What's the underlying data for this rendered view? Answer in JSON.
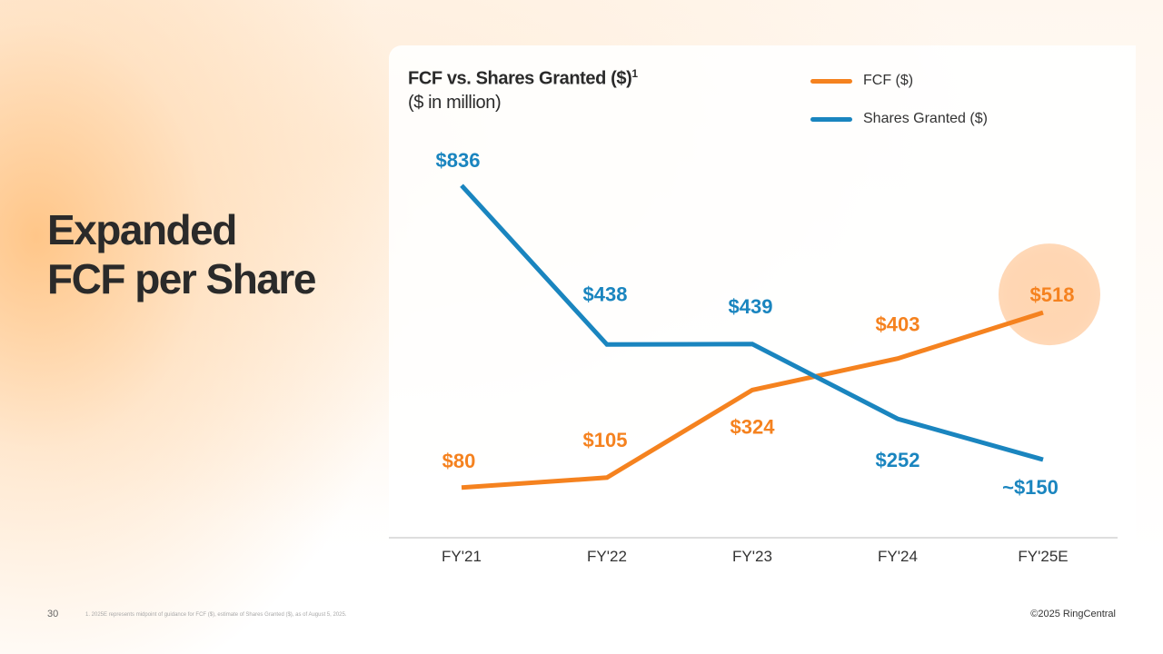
{
  "slide": {
    "headline_line1": "Expanded",
    "headline_line2": "FCF per Share",
    "page_number": "30",
    "footnote": "1.   2025E represents midpoint of guidance for FCF ($), estimate of Shares Granted ($), as of August 5, 2025.",
    "copyright": "©2025 RingCentral"
  },
  "chart_data": {
    "type": "line",
    "title": "FCF vs. Shares Granted ($)",
    "title_superscript": "1",
    "subtitle": "($ in million)",
    "categories": [
      "FY'21",
      "FY'22",
      "FY'23",
      "FY'24",
      "FY'25E"
    ],
    "series": [
      {
        "name": "FCF ($)",
        "color": "#f5821f",
        "values": [
          80,
          105,
          324,
          403,
          518
        ],
        "labels": [
          "$80",
          "$105",
          "$324",
          "$403",
          "$518"
        ]
      },
      {
        "name": "Shares Granted ($)",
        "color": "#1a85bf",
        "values": [
          836,
          438,
          439,
          252,
          150
        ],
        "labels": [
          "$836",
          "$438",
          "$439",
          "$252",
          "~$150"
        ]
      }
    ],
    "ylim": [
      0,
      900
    ],
    "highlight": {
      "series": 0,
      "index": 4
    },
    "grid": false,
    "legend_position": "top-right"
  }
}
